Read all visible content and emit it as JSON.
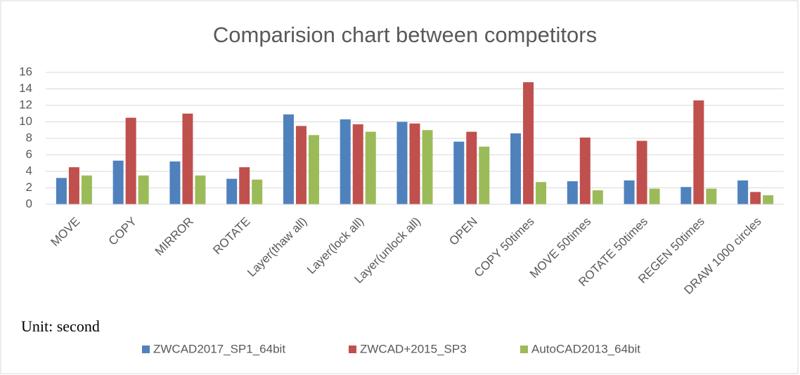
{
  "chart_data": {
    "type": "bar",
    "title": "Comparision chart between competitors",
    "annotation": "Unit: second",
    "categories": [
      "MOVE",
      "COPY",
      "MIRROR",
      "ROTATE",
      "Layer(thaw all)",
      "Layer(lock all)",
      "Layer(unlock all)",
      "OPEN",
      "COPY 50times",
      "MOVE 50times",
      "ROTATE 50times",
      "REGEN 50times",
      "DRAW 1000 circles"
    ],
    "series": [
      {
        "name": "ZWCAD2017_SP1_64bit",
        "color": "#4f81bd",
        "values": [
          3.2,
          5.3,
          5.2,
          3.1,
          10.9,
          10.3,
          10.0,
          7.6,
          8.6,
          2.8,
          2.9,
          2.1,
          2.9
        ]
      },
      {
        "name": "ZWCAD+2015_SP3",
        "color": "#c0504d",
        "values": [
          4.5,
          10.5,
          11.0,
          4.5,
          9.5,
          9.7,
          9.8,
          8.8,
          14.8,
          8.1,
          7.7,
          12.6,
          1.5
        ]
      },
      {
        "name": "AutoCAD2013_64bit",
        "color": "#9bbb59",
        "values": [
          3.5,
          3.5,
          3.5,
          3.0,
          8.4,
          8.8,
          9.0,
          7.0,
          2.7,
          1.7,
          1.9,
          1.9,
          1.1
        ]
      }
    ],
    "ylim": [
      0,
      16
    ],
    "yticks": [
      0,
      2,
      4,
      6,
      8,
      10,
      12,
      14,
      16
    ],
    "grid": true,
    "legend": "bottom"
  }
}
